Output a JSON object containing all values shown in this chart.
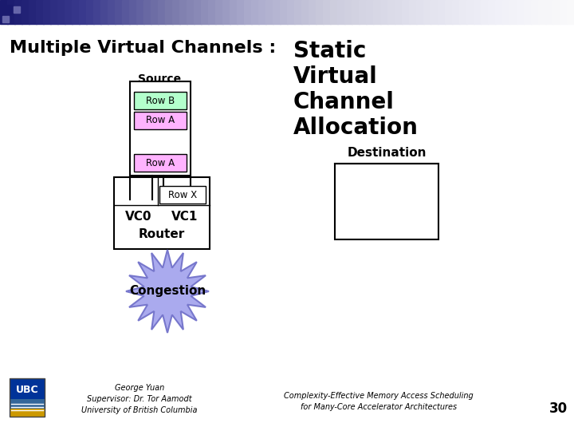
{
  "bg_color": "#ffffff",
  "title_left": "Multiple Virtual Channels : ",
  "title_right_lines": [
    "Static",
    "Virtual",
    "Channel",
    "Allocation"
  ],
  "source_label": "Source",
  "destination_label": "Destination",
  "row_b_label": "Row B",
  "row_a1_label": "Row A",
  "row_a2_label": "Row A",
  "row_x_label": "Row X",
  "vc0_label": "VC0",
  "vc1_label": "VC1",
  "router_label": "Router",
  "congestion_label": "Congestion",
  "row_b_color": "#b3ffcc",
  "row_a_color": "#ffb3ff",
  "congestion_fill": "#aaaaee",
  "congestion_edge": "#7777cc",
  "footer_left1": "George Yuan",
  "footer_left2": "Supervisor: Dr. Tor Aamodt",
  "footer_left3": "University of British Columbia",
  "footer_right1": "Complexity-Effective Memory Access Scheduling",
  "footer_right2": "for Many-Core Accelerator Architectures",
  "page_num": "30",
  "grad_colors": [
    "#1a1a6e",
    "#3a3a8e",
    "#7777aa",
    "#aaaacc",
    "#ccccdd",
    "#e0e0ec",
    "#f0f0f8",
    "#fafafa"
  ],
  "grad_n": 80
}
